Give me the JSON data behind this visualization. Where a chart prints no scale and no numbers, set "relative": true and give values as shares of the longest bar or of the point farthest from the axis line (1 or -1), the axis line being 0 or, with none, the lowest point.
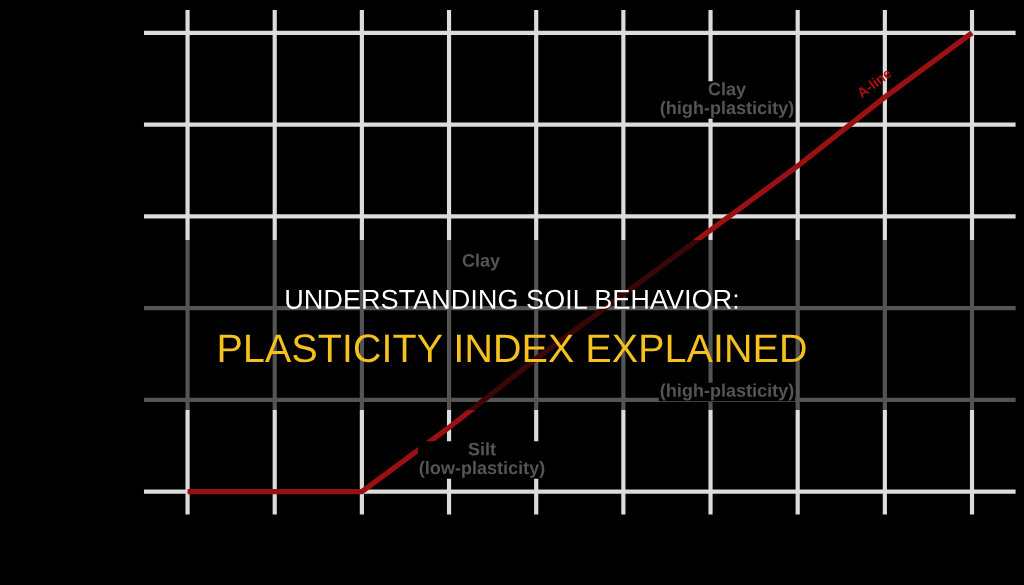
{
  "chart_data": {
    "type": "line",
    "title": "UNDERSTANDING SOIL BEHAVIOR:",
    "subtitle": "PLASTICITY INDEX EXPLAINED",
    "categories": [
      null,
      null,
      null,
      null,
      null,
      null,
      null,
      null,
      null,
      null
    ],
    "series": [
      {
        "color": "#9b1010",
        "values": [
          0,
          0,
          0,
          0.14,
          0.29,
          0.43,
          0.57,
          0.71,
          0.86,
          1
        ]
      }
    ],
    "relative": true,
    "grid": true,
    "annotations": [
      "Clay\n(high-plasticity)",
      "A-line",
      "Clay",
      "(high-plasticity)",
      "Silt\n(low-plasticity)"
    ]
  }
}
